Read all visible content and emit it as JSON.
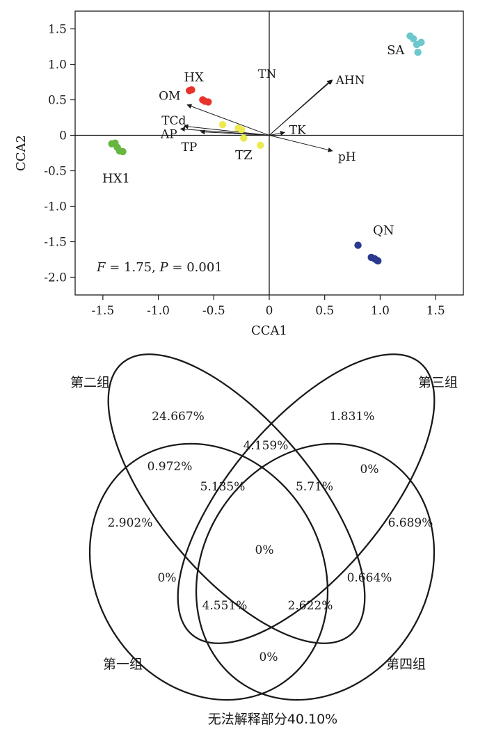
{
  "chart_data": [
    {
      "type": "scatter",
      "subtype": "CCA biplot",
      "xlabel": "CCA1",
      "ylabel": "CCA2",
      "xlim": [
        -1.75,
        1.75
      ],
      "ylim": [
        -2.25,
        1.75
      ],
      "xticks": [
        "-1.5",
        "-1.0",
        "-0.5",
        "0",
        "0.5",
        "1.0",
        "1.5"
      ],
      "yticks": [
        "1.5",
        "1.0",
        "0.5",
        "0",
        "-0.5",
        "-1.0",
        "-1.5",
        "-2.0"
      ],
      "statistic": {
        "F_label": "F",
        "F_text": " = 1.75, ",
        "P_label": "P",
        "P_text": " = 0.001"
      },
      "groups": [
        {
          "label": "HX",
          "color": "#e8332b",
          "points": [
            [
              -0.72,
              0.63
            ],
            [
              -0.7,
              0.64
            ],
            [
              -0.6,
              0.5
            ],
            [
              -0.58,
              0.48
            ],
            [
              -0.55,
              0.47
            ]
          ]
        },
        {
          "label": "HX1",
          "color": "#67b640",
          "points": [
            [
              -1.42,
              -0.12
            ],
            [
              -1.39,
              -0.11
            ],
            [
              -1.37,
              -0.17
            ],
            [
              -1.35,
              -0.22
            ],
            [
              -1.32,
              -0.23
            ]
          ]
        },
        {
          "label": "SA",
          "color": "#6cc8cc",
          "points": [
            [
              1.27,
              1.4
            ],
            [
              1.3,
              1.36
            ],
            [
              1.33,
              1.28
            ],
            [
              1.37,
              1.31
            ],
            [
              1.34,
              1.17
            ]
          ]
        },
        {
          "label": "QN",
          "color": "#2b3990",
          "points": [
            [
              0.8,
              -1.55
            ],
            [
              0.92,
              -1.72
            ],
            [
              0.95,
              -1.74
            ],
            [
              0.97,
              -1.76
            ],
            [
              0.98,
              -1.77
            ]
          ]
        },
        {
          "label": "TZ",
          "color": "#ecea4f",
          "points": [
            [
              -0.42,
              0.15
            ],
            [
              -0.28,
              0.1
            ],
            [
              -0.25,
              0.08
            ],
            [
              -0.23,
              -0.04
            ],
            [
              -0.08,
              -0.14
            ]
          ]
        }
      ],
      "vectors": [
        {
          "label": "TN",
          "x": 0.56,
          "y": 0.78
        },
        {
          "label": "AHN",
          "x": 0.57,
          "y": 0.78
        },
        {
          "label": "TK",
          "x": 0.14,
          "y": 0.04
        },
        {
          "label": "pH",
          "x": 0.57,
          "y": -0.22
        },
        {
          "label": "OM",
          "x": -0.74,
          "y": 0.43
        },
        {
          "label": "TCd",
          "x": -0.77,
          "y": 0.13
        },
        {
          "label": "AP",
          "x": -0.8,
          "y": 0.09
        },
        {
          "label": "TP",
          "x": -0.62,
          "y": 0.05
        }
      ]
    },
    {
      "type": "venn",
      "sets": [
        "第一组",
        "第二组",
        "第三组",
        "第四组"
      ],
      "regions": [
        {
          "sets": [
            "第二组"
          ],
          "value": "24.667%"
        },
        {
          "sets": [
            "第三组"
          ],
          "value": "1.831%"
        },
        {
          "sets": [
            "第二组",
            "第三组"
          ],
          "value": "4.159%"
        },
        {
          "sets": [
            "第一组",
            "第二组"
          ],
          "value": "0.972%"
        },
        {
          "sets": [
            "第三组",
            "第四组"
          ],
          "value": "0%"
        },
        {
          "sets": [
            "第一组",
            "第二组",
            "第三组"
          ],
          "value": "5.135%"
        },
        {
          "sets": [
            "第二组",
            "第三组",
            "第四组"
          ],
          "value": "5.71%"
        },
        {
          "sets": [
            "第一组"
          ],
          "value": "2.902%"
        },
        {
          "sets": [
            "第四组"
          ],
          "value": "6.689%"
        },
        {
          "sets": [
            "第一组",
            "第二组",
            "第三组",
            "第四组"
          ],
          "value": "0%"
        },
        {
          "sets": [
            "第一组",
            "第三组"
          ],
          "value": "0%"
        },
        {
          "sets": [
            "第二组",
            "第四组"
          ],
          "value": "0.664%"
        },
        {
          "sets": [
            "第一组",
            "第三组",
            "第四组"
          ],
          "value": "4.551%"
        },
        {
          "sets": [
            "第一组",
            "第二组",
            "第四组"
          ],
          "value": "2.622%"
        },
        {
          "sets": [
            "第一组",
            "第四组"
          ],
          "value": "0%"
        }
      ],
      "unexplained": "无法解释部分40.10%"
    }
  ]
}
